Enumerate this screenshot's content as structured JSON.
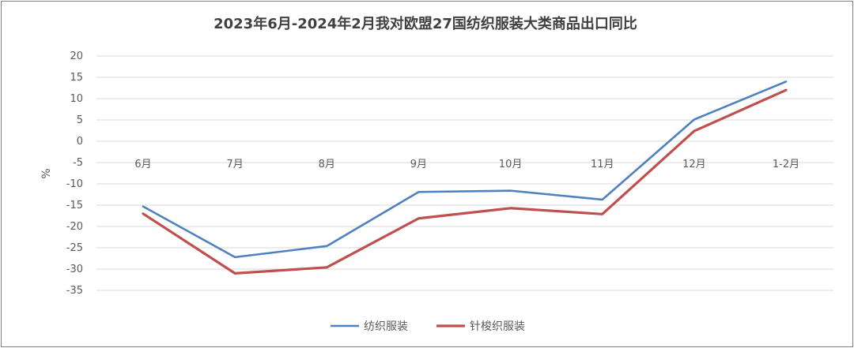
{
  "chart_data": {
    "type": "line",
    "title": "2023年6月-2024年2月我对欧盟27国纺织服装大类商品出口同比",
    "ylabel": "%",
    "xlabel": "",
    "categories": [
      "6月",
      "7月",
      "8月",
      "9月",
      "10月",
      "11月",
      "12月",
      "1-2月"
    ],
    "series": [
      {
        "name": "纺织服装",
        "color": "#4f81bd",
        "values": [
          -15.3,
          -27.2,
          -24.6,
          -11.9,
          -11.6,
          -13.7,
          5.1,
          14.0
        ]
      },
      {
        "name": "针梭织服装",
        "color": "#c0504d",
        "values": [
          -17.0,
          -31.0,
          -29.6,
          -18.1,
          -15.7,
          -17.1,
          2.4,
          12.0
        ]
      }
    ],
    "ylim": [
      -35,
      20
    ],
    "yticks": [
      20,
      15,
      10,
      5,
      0,
      -5,
      -10,
      -15,
      -20,
      -25,
      -30,
      -35
    ],
    "grid": true,
    "legend": "bottom"
  }
}
